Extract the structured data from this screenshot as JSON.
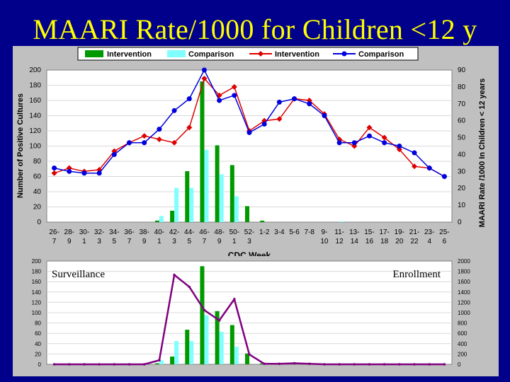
{
  "slide": {
    "title": "MAARI Rate/1000 for Children <12 y"
  },
  "colors": {
    "background": "#00008b",
    "panel": "#c0c0c0",
    "plot": "#ffffff",
    "title": "#ffff00",
    "intervention_bar": "#009900",
    "comparison_bar": "#80ffff",
    "intervention_line": "#dd0000",
    "comparison_line": "#0000dd",
    "enrollment_line": "#800080"
  },
  "chart_data": [
    {
      "type": "bar+line",
      "legend": [
        "Intervention",
        "Comparison",
        "Intervention",
        "Comparison"
      ],
      "legend_position": "top",
      "xlabel": "CDC Week",
      "ylabel": "Number of Positive Cultures",
      "y2label": "MAARI Rate /1000 In Children < 12 years",
      "ylim": [
        0,
        200
      ],
      "y2lim": [
        0,
        90
      ],
      "yticks": [
        "0",
        "20",
        "40",
        "60",
        "80",
        "100",
        "120",
        "140",
        "160",
        "180",
        "200"
      ],
      "y2ticks": [
        "0",
        "10",
        "20",
        "30",
        "40",
        "50",
        "60",
        "70",
        "80",
        "90"
      ],
      "categories": [
        "26-27",
        "28-29",
        "30-31",
        "32-33",
        "34-35",
        "36-37",
        "38-39",
        "40-41",
        "42-43",
        "44-45",
        "46-47",
        "48-49",
        "50-51",
        "52-53",
        "1-2",
        "3-4",
        "5-6",
        "7-8",
        "9-10",
        "11-12",
        "13-14",
        "15-16",
        "17-18",
        "19-20",
        "21-22",
        "23-24",
        "25-26"
      ],
      "tick_labels": [
        [
          "26-",
          "7"
        ],
        [
          "28-",
          "9"
        ],
        [
          "30-",
          "1"
        ],
        [
          "32-",
          "3"
        ],
        [
          "34-",
          "5"
        ],
        [
          "36-",
          "7"
        ],
        [
          "38-",
          "9"
        ],
        [
          "40-",
          "1"
        ],
        [
          "42-",
          "3"
        ],
        [
          "44-",
          "5"
        ],
        [
          "46-",
          "7"
        ],
        [
          "48-",
          "9"
        ],
        [
          "50-",
          "1"
        ],
        [
          "52-",
          "3"
        ],
        [
          "1-2",
          ""
        ],
        [
          "3-4",
          ""
        ],
        [
          "5-6",
          ""
        ],
        [
          "7-8",
          ""
        ],
        [
          "9-",
          "10"
        ],
        [
          "11-",
          "12"
        ],
        [
          "13-",
          "14"
        ],
        [
          "15-",
          "16"
        ],
        [
          "17-",
          "18"
        ],
        [
          "19-",
          "20"
        ],
        [
          "21-",
          "22"
        ],
        [
          "23-",
          "4"
        ],
        [
          "25-",
          "6"
        ]
      ],
      "bars": [
        {
          "name": "Intervention",
          "values": [
            0,
            0,
            0,
            0,
            0,
            0,
            0,
            2,
            15,
            67,
            185,
            101,
            75,
            21,
            2,
            0,
            0,
            0,
            0,
            0,
            0,
            0,
            0,
            0,
            0,
            0,
            0
          ]
        },
        {
          "name": "Comparison",
          "values": [
            0,
            0,
            0,
            0,
            0,
            0,
            0,
            8,
            45,
            45,
            95,
            63,
            34,
            0,
            0,
            0,
            0,
            0,
            0,
            1,
            0,
            0,
            0,
            0,
            0,
            0,
            0
          ]
        }
      ],
      "lines": [
        {
          "name": "Intervention",
          "axis": "right",
          "values": [
            29,
            32,
            30,
            31,
            42,
            47,
            51,
            49,
            47,
            56,
            85,
            75,
            80,
            54,
            60,
            61,
            73,
            72,
            64,
            49,
            45,
            56,
            50,
            43,
            33,
            32,
            27
          ]
        },
        {
          "name": "Comparison",
          "axis": "right",
          "values": [
            32,
            30,
            29,
            29,
            40,
            47,
            47,
            55,
            66,
            73,
            90,
            72,
            75,
            53,
            58,
            71,
            73,
            70,
            63,
            47,
            47,
            51,
            47,
            45,
            41,
            32,
            27
          ]
        }
      ]
    },
    {
      "type": "bar+line",
      "ylim": [
        0,
        200
      ],
      "y2lim": [
        0,
        2000
      ],
      "yticks": [
        "0",
        "20",
        "40",
        "60",
        "80",
        "100",
        "120",
        "140",
        "160",
        "180",
        "200"
      ],
      "y2ticks": [
        "0",
        "200",
        "400",
        "600",
        "800",
        "1000",
        "1200",
        "1400",
        "1600",
        "1800",
        "2000"
      ],
      "annotations": {
        "left": "Surveillance",
        "right": "Enrollment"
      },
      "bars": [
        {
          "name": "Intervention",
          "values": [
            0,
            0,
            0,
            0,
            0,
            0,
            0,
            2,
            15,
            67,
            190,
            103,
            76,
            21,
            2,
            0,
            0,
            0,
            0,
            0,
            0,
            0,
            0,
            0,
            0,
            0,
            0
          ]
        },
        {
          "name": "Comparison",
          "values": [
            0,
            0,
            0,
            0,
            0,
            0,
            0,
            8,
            45,
            45,
            95,
            63,
            34,
            0,
            0,
            0,
            0,
            0,
            0,
            0,
            0,
            0,
            0,
            0,
            0,
            0,
            0
          ]
        }
      ],
      "lines": [
        {
          "name": "Enrollment",
          "axis": "right",
          "values": [
            0,
            0,
            0,
            0,
            0,
            0,
            0,
            80,
            1730,
            1500,
            1050,
            850,
            1260,
            190,
            10,
            10,
            20,
            10,
            0,
            0,
            0,
            0,
            0,
            0,
            0,
            0,
            0
          ]
        }
      ]
    }
  ]
}
